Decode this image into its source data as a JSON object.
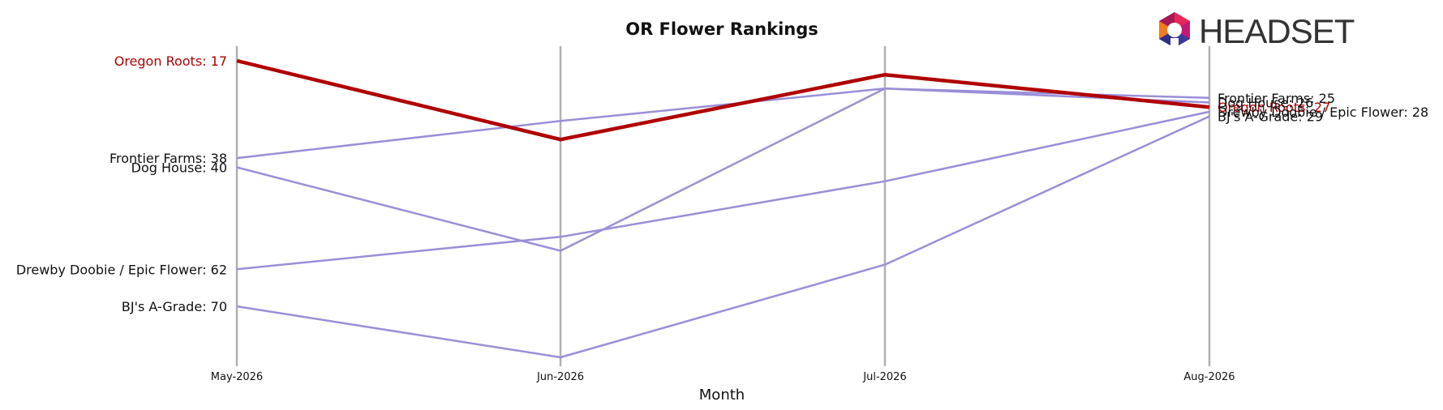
{
  "chart_data": {
    "type": "line",
    "title": "OR Flower Rankings",
    "xlabel": "Month",
    "ylabel": "",
    "y_inverted": true,
    "ylim": [
      95,
      10
    ],
    "categories": [
      "May-2026",
      "Jun-2026",
      "Jul-2026",
      "Aug-2026"
    ],
    "grid": "vertical lines at each month",
    "series": [
      {
        "name": "Oregon Roots",
        "values": [
          17,
          34,
          20,
          27
        ],
        "color": "#b00000",
        "highlight": true,
        "start_label": "Oregon Roots: 17",
        "end_label": "Oregon Roots: 27"
      },
      {
        "name": "Frontier Farms",
        "values": [
          38,
          30,
          23,
          25
        ],
        "color": "#9a8fd8",
        "start_label": "Frontier Farms: 38",
        "end_label": "Frontier Farms: 25"
      },
      {
        "name": "Dog House",
        "values": [
          40,
          58,
          23,
          26
        ],
        "color": "#9a8fd8",
        "start_label": "Dog House: 40",
        "end_label": "Dog House: 26"
      },
      {
        "name": "Drewby Doobie / Epic Flower",
        "values": [
          62,
          55,
          43,
          28
        ],
        "color": "#9a8fd8",
        "start_label": "Drewby Doobie / Epic Flower: 62",
        "end_label": "Drewby Doobie / Epic Flower: 28"
      },
      {
        "name": "BJ's A-Grade",
        "values": [
          70,
          81,
          61,
          29
        ],
        "color": "#9a8fd8",
        "start_label": "BJ's A-Grade: 70",
        "end_label": "BJ's A-Grade: 29"
      }
    ]
  },
  "brand": {
    "name": "HEADSET"
  }
}
